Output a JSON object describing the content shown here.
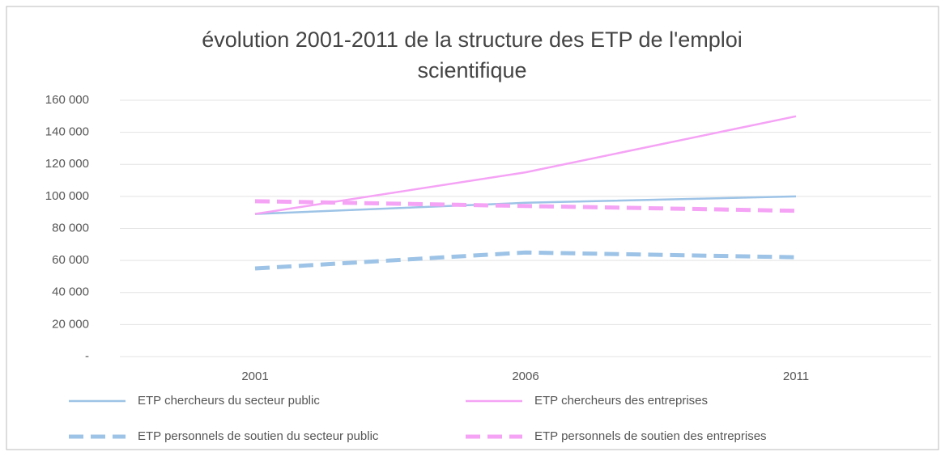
{
  "chart_data": {
    "type": "line",
    "title": "évolution 2001-2011 de la structure des ETP de l'emploi scientifique",
    "categories": [
      "2001",
      "2006",
      "2011"
    ],
    "series": [
      {
        "name": "ETP chercheurs du secteur public",
        "color": "#9dc3e6",
        "dashed": false,
        "values": [
          89000,
          96000,
          100000
        ]
      },
      {
        "name": "ETP chercheurs des entreprises",
        "color": "#f5a3f5",
        "dashed": false,
        "values": [
          89000,
          115000,
          150000
        ]
      },
      {
        "name": "ETP  personnels de soutien du secteur public",
        "color": "#9dc3e6",
        "dashed": true,
        "values": [
          55000,
          65000,
          62000
        ]
      },
      {
        "name": "ETP personnels de soutien des entreprises",
        "color": "#f5a3f5",
        "dashed": true,
        "values": [
          97000,
          94000,
          91000
        ]
      }
    ],
    "ylim": [
      0,
      160000
    ],
    "yticks": [
      {
        "value": 0,
        "label": "-"
      },
      {
        "value": 20000,
        "label": "20 000"
      },
      {
        "value": 40000,
        "label": "40 000"
      },
      {
        "value": 60000,
        "label": "60 000"
      },
      {
        "value": 80000,
        "label": "80 000"
      },
      {
        "value": 100000,
        "label": "100 000"
      },
      {
        "value": 120000,
        "label": "120 000"
      },
      {
        "value": 140000,
        "label": "140 000"
      },
      {
        "value": 160000,
        "label": "160 000"
      }
    ],
    "grid": true
  }
}
